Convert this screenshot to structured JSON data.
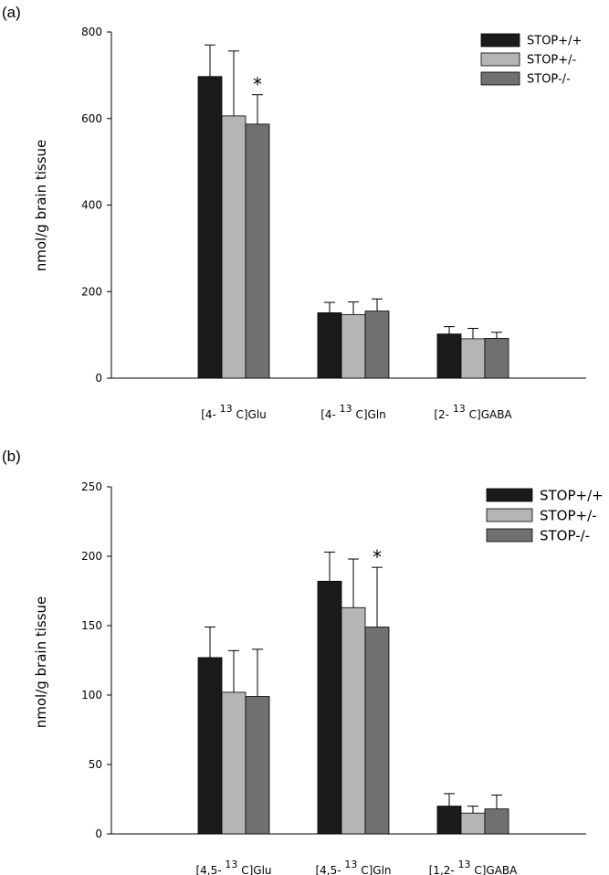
{
  "chart_data": [
    {
      "type": "bar",
      "panel": "(a)",
      "ylabel": "nmol/g brain tissue",
      "ylim": [
        0,
        800
      ],
      "yticks": [
        "0",
        "200",
        "400",
        "600",
        "800"
      ],
      "ytick_values": [
        0,
        200,
        400,
        600,
        800
      ],
      "categories": [
        {
          "prefix": "[4-",
          "sup": "13",
          "suffix": "C]Glu"
        },
        {
          "prefix": "[4-",
          "sup": "13",
          "suffix": "C]Gln"
        },
        {
          "prefix": "[2-",
          "sup": "13",
          "suffix": "C]GABA"
        }
      ],
      "series": [
        {
          "name": "STOP+/+",
          "color": "#1a1a1a",
          "values": [
            697,
            151,
            102
          ],
          "errors": [
            73,
            24,
            17
          ]
        },
        {
          "name": "STOP+/-",
          "color": "#b5b5b5",
          "values": [
            606,
            147,
            91
          ],
          "errors": [
            150,
            29,
            24
          ]
        },
        {
          "name": "STOP-/-",
          "color": "#707070",
          "values": [
            587,
            155,
            92
          ],
          "errors": [
            68,
            28,
            14
          ]
        }
      ],
      "annotations": [
        {
          "text": "*",
          "category": 0,
          "series": 2
        }
      ],
      "legend": "top-right",
      "grid": false
    },
    {
      "type": "bar",
      "panel": "(b)",
      "ylabel": "nmol/g brain tissue",
      "ylim": [
        0,
        250
      ],
      "yticks": [
        "0",
        "50",
        "100",
        "150",
        "200",
        "250"
      ],
      "ytick_values": [
        0,
        50,
        100,
        150,
        200,
        250
      ],
      "categories": [
        {
          "prefix": "[4,5-",
          "sup": "13",
          "suffix": "C]Glu"
        },
        {
          "prefix": "[4,5-",
          "sup": "13",
          "suffix": "C]Gln"
        },
        {
          "prefix": "[1,2-",
          "sup": "13",
          "suffix": "C]GABA"
        }
      ],
      "series": [
        {
          "name": "STOP+/+",
          "color": "#1a1a1a",
          "values": [
            127,
            182,
            20
          ],
          "errors": [
            22,
            21,
            9
          ]
        },
        {
          "name": "STOP+/-",
          "color": "#b5b5b5",
          "values": [
            102,
            163,
            15
          ],
          "errors": [
            30,
            35,
            5
          ]
        },
        {
          "name": "STOP-/-",
          "color": "#707070",
          "values": [
            99,
            149,
            18
          ],
          "errors": [
            34,
            43,
            10
          ]
        }
      ],
      "annotations": [
        {
          "text": "*",
          "category": 1,
          "series": 2
        }
      ],
      "legend": "top-right",
      "grid": false
    }
  ]
}
